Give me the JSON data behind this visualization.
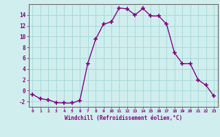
{
  "x": [
    0,
    1,
    2,
    3,
    4,
    5,
    6,
    7,
    8,
    9,
    10,
    11,
    12,
    13,
    14,
    15,
    16,
    17,
    18,
    19,
    20,
    21,
    22,
    23
  ],
  "y": [
    -0.7,
    -1.5,
    -1.7,
    -2.2,
    -2.3,
    -2.3,
    -1.8,
    5.0,
    9.5,
    12.3,
    12.7,
    15.3,
    15.1,
    14.0,
    15.2,
    13.8,
    13.8,
    12.3,
    7.0,
    5.0,
    5.0,
    2.0,
    1.0,
    -1.0
  ],
  "line_color": "#800080",
  "marker": "+",
  "marker_size": 4,
  "marker_lw": 1.2,
  "bg_color": "#d0eeee",
  "grid_color": "#a8d8d8",
  "xlabel": "Windchill (Refroidissement éolien,°C)",
  "xlabel_color": "#800080",
  "tick_color": "#800080",
  "ylim": [
    -3,
    16
  ],
  "yticks": [
    0,
    2,
    4,
    6,
    8,
    10,
    12,
    14
  ],
  "ytick_labels": [
    "0",
    "2",
    "4",
    "6",
    "8",
    "10",
    "12",
    "14"
  ],
  "y_extra_label": "-2",
  "y_extra_val": -2,
  "xlim": [
    -0.5,
    23.5
  ],
  "xticks": [
    0,
    1,
    2,
    3,
    4,
    5,
    6,
    7,
    8,
    9,
    10,
    11,
    12,
    13,
    14,
    15,
    16,
    17,
    18,
    19,
    20,
    21,
    22,
    23
  ],
  "xtick_labels": [
    "0",
    "1",
    "2",
    "3",
    "4",
    "5",
    "6",
    "7",
    "8",
    "9",
    "10",
    "11",
    "12",
    "13",
    "14",
    "15",
    "16",
    "17",
    "18",
    "19",
    "20",
    "21",
    "22",
    "23"
  ],
  "spine_color": "#666666",
  "linewidth": 1.0
}
